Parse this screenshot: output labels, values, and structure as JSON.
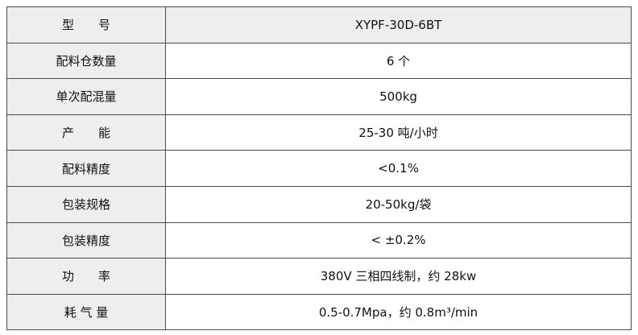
{
  "table": {
    "rows": [
      [
        "型　　号",
        "XYPF-30D-6BT"
      ],
      [
        "配料仓数量",
        "6 个"
      ],
      [
        "单次配混量",
        "500kg"
      ],
      [
        "产　　能",
        "25-30 吨/小时"
      ],
      [
        "配料精度",
        "<0.1%"
      ],
      [
        "包装规格",
        "20-50kg/袋"
      ],
      [
        "包装精度",
        "< ±0.2%"
      ],
      [
        "功　　率",
        "380V 三相四线制，约 28kw"
      ],
      [
        "耗 气 量",
        "0.5-0.7Mpa，约 0.8m³/min"
      ]
    ]
  }
}
